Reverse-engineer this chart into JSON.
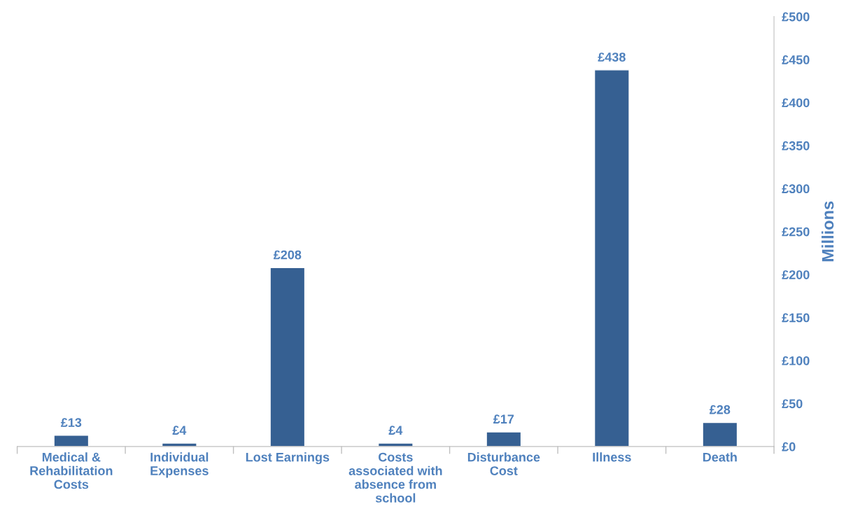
{
  "chart_data": {
    "type": "bar",
    "categories": [
      "Medical &\nRehabilitation\nCosts",
      "Individual\nExpenses",
      "Lost Earnings",
      "Costs\nassociated with\nabsence from\nschool",
      "Disturbance\nCost",
      "Illness",
      "Death"
    ],
    "values": [
      13,
      4,
      208,
      4,
      17,
      438,
      28
    ],
    "value_labels": [
      "£13",
      "£4",
      "£208",
      "£4",
      "£17",
      "£438",
      "£28"
    ],
    "color": "#366092",
    "ylabel": "Millions",
    "ylim": [
      0,
      500
    ],
    "yticks": [
      {
        "value": 0,
        "label": "£0"
      },
      {
        "value": 50,
        "label": "£50"
      },
      {
        "value": 100,
        "label": "£100"
      },
      {
        "value": 150,
        "label": "£150"
      },
      {
        "value": 200,
        "label": "£200"
      },
      {
        "value": 250,
        "label": "£250"
      },
      {
        "value": 300,
        "label": "£300"
      },
      {
        "value": 350,
        "label": "£350"
      },
      {
        "value": 400,
        "label": "£400"
      },
      {
        "value": 450,
        "label": "£450"
      },
      {
        "value": 500,
        "label": "£500"
      }
    ],
    "grid": false,
    "legend": false
  }
}
